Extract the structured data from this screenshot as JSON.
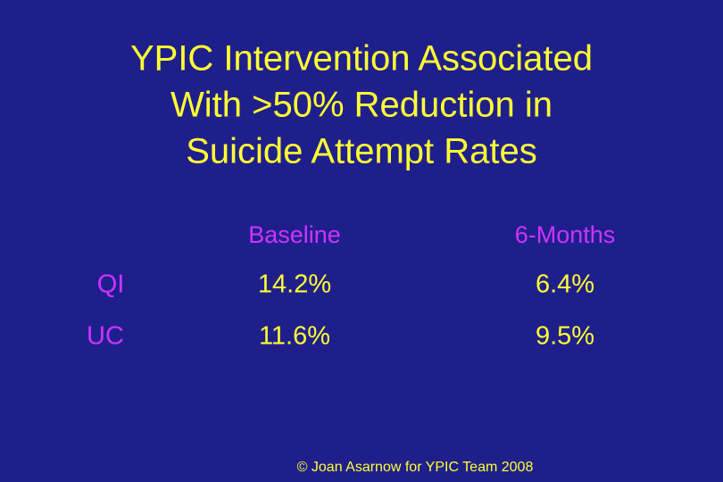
{
  "title": [
    "YPIC Intervention Associated",
    "With >50% Reduction in",
    "Suicide Attempt Rates"
  ],
  "table": {
    "columns": [
      "Baseline",
      "6-Months"
    ],
    "rows": [
      [
        "QI",
        "14.2%",
        "6.4%"
      ],
      [
        "UC",
        "11.6%",
        "9.5%"
      ]
    ]
  },
  "footer": "© Joan Asarnow for YPIC Team 2008"
}
